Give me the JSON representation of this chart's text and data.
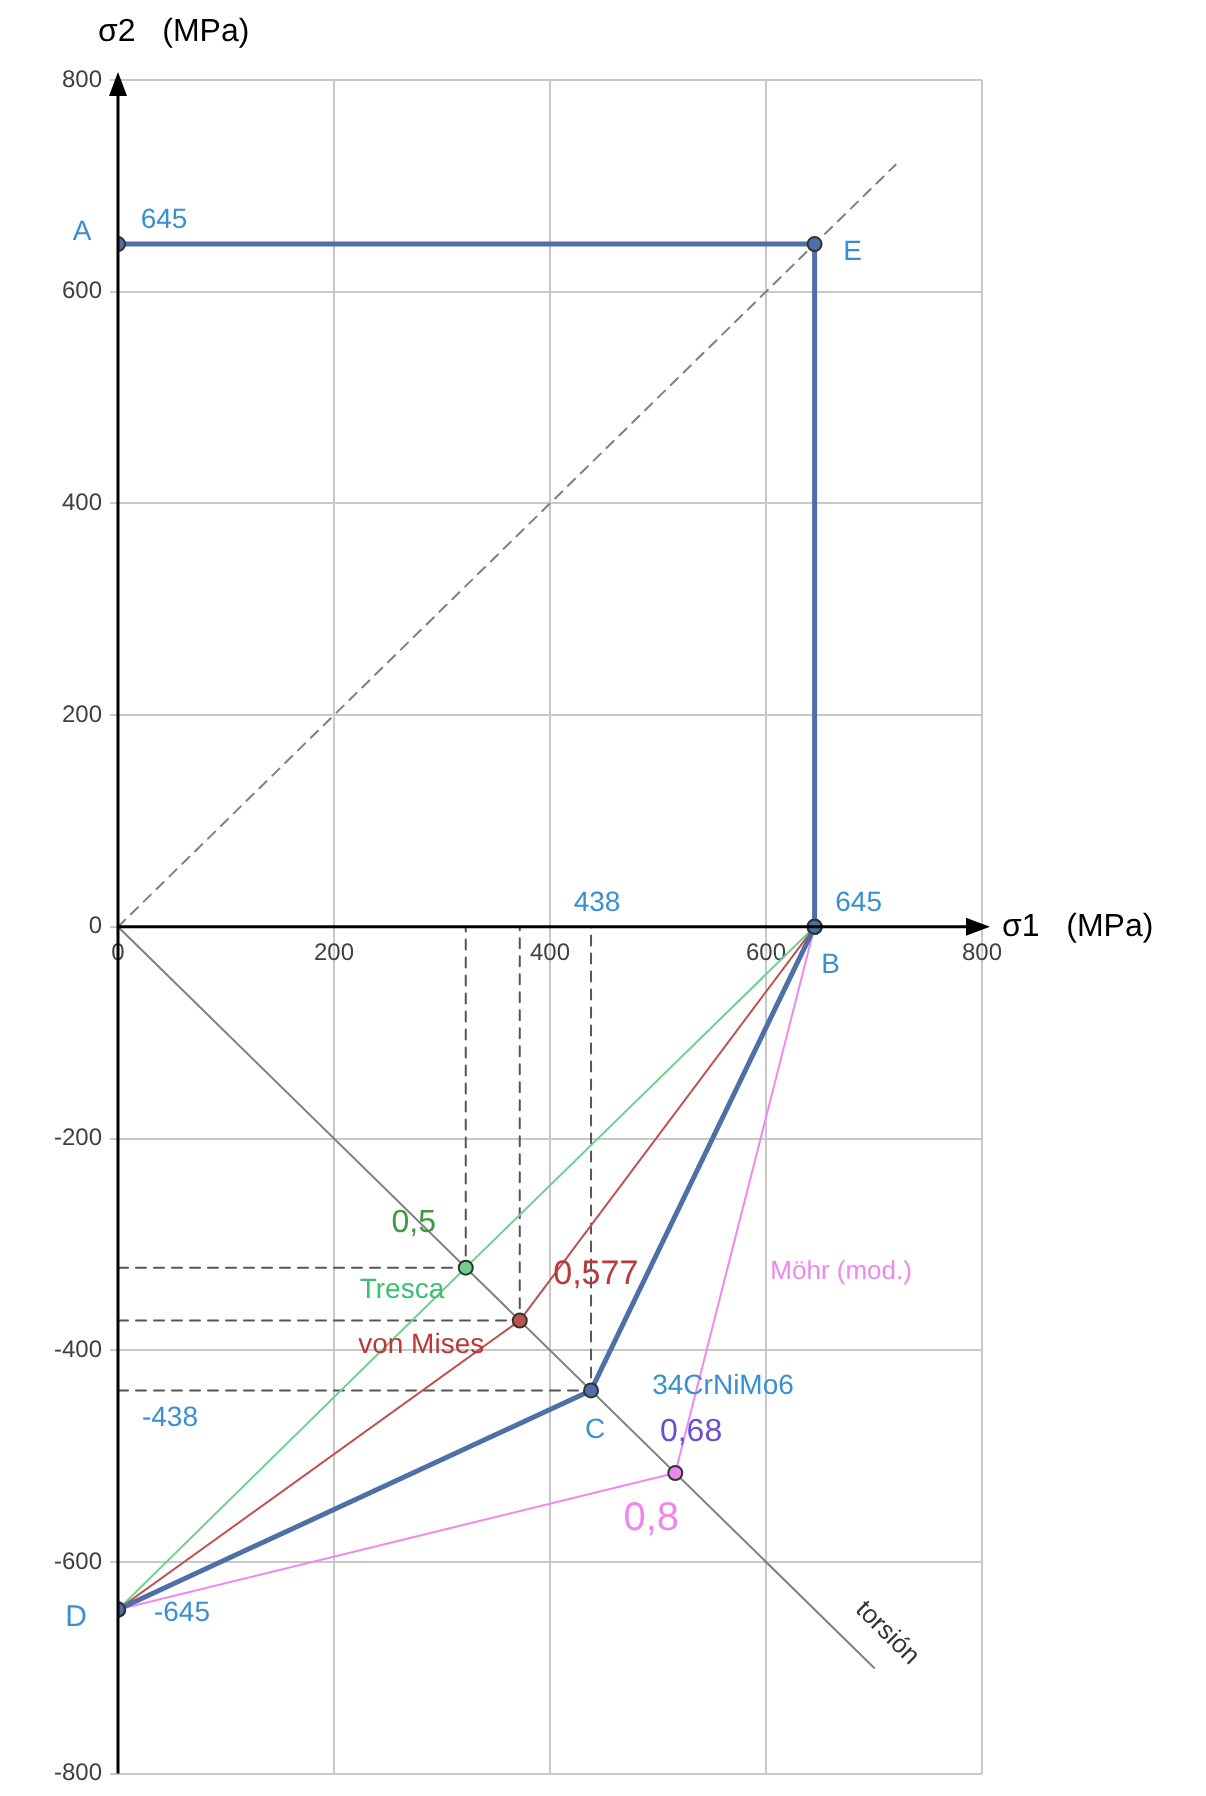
{
  "chart_data": {
    "type": "line",
    "xlabel": "σ1   (MPa)",
    "ylabel": "σ2   (MPa)",
    "xlim": [
      0,
      800
    ],
    "ylim": [
      -800,
      800
    ],
    "xticks": [
      0,
      200,
      400,
      600,
      800
    ],
    "yticks": [
      -800,
      -600,
      -400,
      -200,
      0,
      200,
      400,
      600,
      800
    ],
    "grid": true,
    "series": [
      {
        "color": "#7f7f7f",
        "line_style": "dashed",
        "marker": "none",
        "x": [
          0,
          720
        ],
        "values": [
          0,
          720
        ]
      },
      {
        "color": "#808080",
        "line_style": "solid",
        "marker": "none",
        "x": [
          0,
          700
        ],
        "values": [
          0,
          -700
        ]
      },
      {
        "color": "#555555",
        "line_style": "dashed",
        "marker": "none",
        "x": [
          0,
          322,
          322
        ],
        "values": [
          -322,
          -322,
          0
        ]
      },
      {
        "color": "#555555",
        "line_style": "dashed",
        "marker": "none",
        "x": [
          0,
          372,
          372
        ],
        "values": [
          -372,
          -372,
          0
        ]
      },
      {
        "color": "#555555",
        "line_style": "dashed",
        "marker": "none",
        "x": [
          0,
          438,
          438
        ],
        "values": [
          -438,
          -438,
          0
        ]
      },
      {
        "color": "#6fcf8f",
        "line_style": "solid",
        "marker": "circle",
        "x": [
          0,
          322,
          645
        ],
        "values": [
          -645,
          -322,
          0
        ]
      },
      {
        "color": "#c0504d",
        "line_style": "solid",
        "marker": "circle",
        "x": [
          0,
          372,
          645
        ],
        "values": [
          -645,
          -372,
          0
        ]
      },
      {
        "color": "#ee88ee",
        "line_style": "solid",
        "marker": "circle",
        "x": [
          0,
          516,
          645
        ],
        "values": [
          -645,
          -516,
          0
        ]
      },
      {
        "color": "#4f6fa8",
        "line_style": "solid",
        "marker": "circle",
        "x": [
          0,
          645,
          645,
          438,
          0
        ],
        "values": [
          645,
          645,
          0,
          -438,
          -645
        ]
      }
    ],
    "annotations": [
      {
        "text": "A",
        "x": 0,
        "y": 645
      },
      {
        "text": "645",
        "x": 0,
        "y": 645
      },
      {
        "text": "E",
        "x": 645,
        "y": 645
      },
      {
        "text": "645",
        "x": 645,
        "y": 0
      },
      {
        "text": "438",
        "x": 438,
        "y": 0
      },
      {
        "text": "B",
        "x": 645,
        "y": 0
      },
      {
        "text": "0,5",
        "x": 322,
        "y": -322
      },
      {
        "text": "Tresca",
        "x": 300,
        "y": -345
      },
      {
        "text": "0,577",
        "x": 372,
        "y": -372
      },
      {
        "text": "von Mises",
        "x": 340,
        "y": -395
      },
      {
        "text": "34CrNiMo6",
        "x": 438,
        "y": -438
      },
      {
        "text": "C",
        "x": 438,
        "y": -438
      },
      {
        "text": "-438",
        "x": 0,
        "y": -438
      },
      {
        "text": "0,68",
        "x": 438,
        "y": -438
      },
      {
        "text": "0,8",
        "x": 516,
        "y": -516
      },
      {
        "text": "Möhr (mod.)",
        "x": 564,
        "y": -324
      },
      {
        "text": "D",
        "x": 0,
        "y": -645
      },
      {
        "text": "-645",
        "x": 0,
        "y": -645
      },
      {
        "text": "torsión",
        "x": 690,
        "y": -690
      }
    ]
  }
}
